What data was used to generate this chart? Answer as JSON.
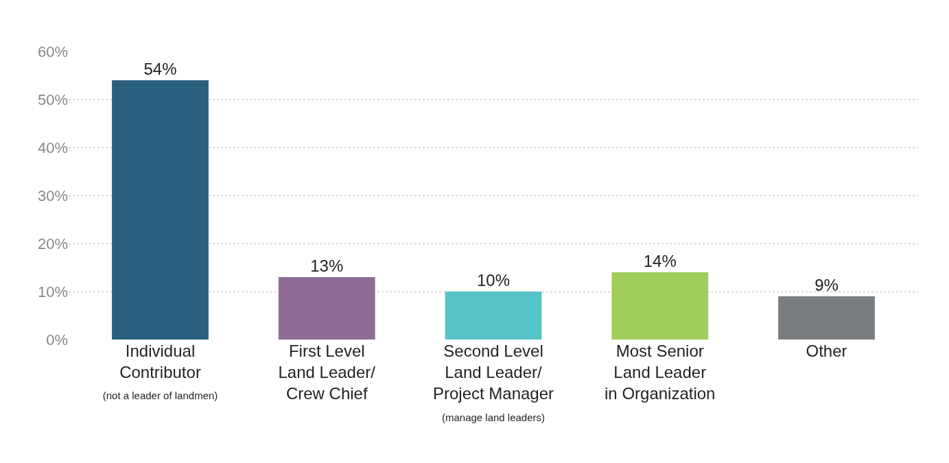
{
  "chart_data": {
    "type": "bar",
    "categories": [
      "Individual\nContributor\n(not a leader of landmen)",
      "First Level\nLand Leader/\nCrew Chief",
      "Second Level\nLand Leader/\nProject Manager\n(manage land leaders)",
      "Most Senior\nLand Leader\nin Organization",
      "Other"
    ],
    "values": [
      54,
      13,
      10,
      14,
      9
    ],
    "colors": [
      "#2b5f7e",
      "#8e6b96",
      "#56c4c8",
      "#a1cd5a",
      "#7a7d7f"
    ],
    "value_labels": [
      "54%",
      "13%",
      "10%",
      "14%",
      "9%"
    ],
    "ylim": [
      0,
      60
    ],
    "yticks": [
      {
        "value": 0,
        "label": "0%"
      },
      {
        "value": 10,
        "label": "10%"
      },
      {
        "value": 20,
        "label": "20%"
      },
      {
        "value": 30,
        "label": "30%"
      },
      {
        "value": 40,
        "label": "40%"
      },
      {
        "value": 50,
        "label": "50%"
      },
      {
        "value": 60,
        "label": "60%"
      }
    ],
    "grid": "y",
    "legend": false
  }
}
